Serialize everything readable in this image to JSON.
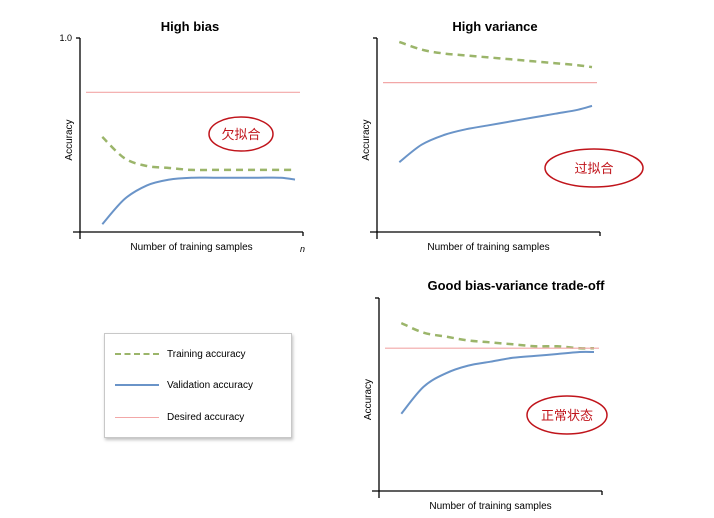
{
  "colors": {
    "training": "#9bb56a",
    "validation": "#6a94c8",
    "desired": "#f2a7a7",
    "annotation": "#c0141b"
  },
  "legend": {
    "placement": "left-bottom",
    "items": [
      "Training accuracy",
      "Validation accuracy",
      "Desired accuracy"
    ]
  },
  "annotations": [
    "欠拟合",
    "过拟合",
    "正常状态"
  ],
  "chart_data": [
    {
      "type": "line",
      "title": "High bias",
      "xlabel": "Number of training samples",
      "ylabel": "Accuracy",
      "x_end_label": "n",
      "ytick_label": "1.0",
      "xlim": [
        0,
        1
      ],
      "ylim": [
        0,
        1
      ],
      "x": [
        0.1,
        0.2,
        0.3,
        0.4,
        0.5,
        0.6,
        0.7,
        0.8,
        0.9,
        1.0
      ],
      "series": [
        {
          "name": "Training accuracy",
          "values": [
            0.49,
            0.38,
            0.34,
            0.33,
            0.32,
            0.32,
            0.32,
            0.32,
            0.32,
            0.32
          ]
        },
        {
          "name": "Validation accuracy",
          "values": [
            0.04,
            0.17,
            0.24,
            0.27,
            0.28,
            0.28,
            0.28,
            0.28,
            0.28,
            0.27
          ]
        },
        {
          "name": "Desired accuracy",
          "values": [
            0.72,
            0.72,
            0.72,
            0.72,
            0.72,
            0.72,
            0.72,
            0.72,
            0.72,
            0.72
          ]
        }
      ],
      "annotation": "欠拟合"
    },
    {
      "type": "line",
      "title": "High variance",
      "xlabel": "Number of training samples",
      "ylabel": "Accuracy",
      "xlim": [
        0,
        1
      ],
      "ylim": [
        0,
        1
      ],
      "x": [
        0.1,
        0.2,
        0.3,
        0.4,
        0.5,
        0.6,
        0.7,
        0.8,
        0.9,
        1.0
      ],
      "series": [
        {
          "name": "Training accuracy",
          "values": [
            0.98,
            0.94,
            0.92,
            0.91,
            0.9,
            0.89,
            0.88,
            0.87,
            0.86,
            0.85
          ]
        },
        {
          "name": "Validation accuracy",
          "values": [
            0.36,
            0.45,
            0.5,
            0.53,
            0.55,
            0.57,
            0.59,
            0.61,
            0.63,
            0.65
          ]
        },
        {
          "name": "Desired accuracy",
          "values": [
            0.77,
            0.77,
            0.77,
            0.77,
            0.77,
            0.77,
            0.77,
            0.77,
            0.77,
            0.77
          ]
        }
      ],
      "annotation": "过拟合"
    },
    {
      "type": "line",
      "title": "Good bias-variance trade-off",
      "xlabel": "Number of training samples",
      "ylabel": "Accuracy",
      "xlim": [
        0,
        1
      ],
      "ylim": [
        0,
        1
      ],
      "x": [
        0.1,
        0.2,
        0.3,
        0.4,
        0.5,
        0.6,
        0.7,
        0.8,
        0.9,
        1.0
      ],
      "series": [
        {
          "name": "Training accuracy",
          "values": [
            0.87,
            0.82,
            0.8,
            0.78,
            0.77,
            0.76,
            0.75,
            0.75,
            0.74,
            0.74
          ]
        },
        {
          "name": "Validation accuracy",
          "values": [
            0.4,
            0.54,
            0.61,
            0.65,
            0.67,
            0.69,
            0.7,
            0.71,
            0.72,
            0.72
          ]
        },
        {
          "name": "Desired accuracy",
          "values": [
            0.74,
            0.74,
            0.74,
            0.74,
            0.74,
            0.74,
            0.74,
            0.74,
            0.74,
            0.74
          ]
        }
      ],
      "annotation": "正常状态"
    }
  ]
}
